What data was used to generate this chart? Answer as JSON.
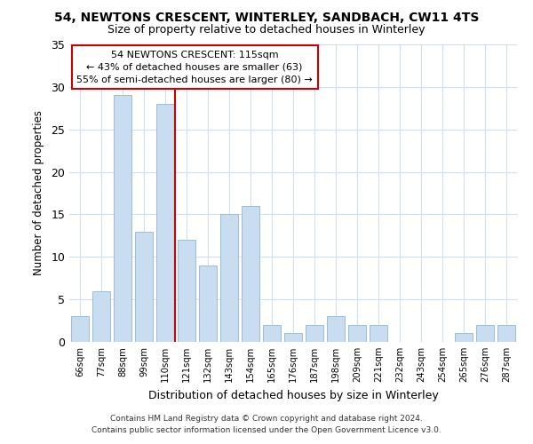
{
  "title": "54, NEWTONS CRESCENT, WINTERLEY, SANDBACH, CW11 4TS",
  "subtitle": "Size of property relative to detached houses in Winterley",
  "xlabel": "Distribution of detached houses by size in Winterley",
  "ylabel": "Number of detached properties",
  "categories": [
    "66sqm",
    "77sqm",
    "88sqm",
    "99sqm",
    "110sqm",
    "121sqm",
    "132sqm",
    "143sqm",
    "154sqm",
    "165sqm",
    "176sqm",
    "187sqm",
    "198sqm",
    "209sqm",
    "221sqm",
    "232sqm",
    "243sqm",
    "254sqm",
    "265sqm",
    "276sqm",
    "287sqm"
  ],
  "values": [
    3,
    6,
    29,
    13,
    28,
    12,
    9,
    15,
    16,
    2,
    1,
    2,
    3,
    2,
    2,
    0,
    0,
    0,
    1,
    2,
    2
  ],
  "bar_color": "#c9ddf0",
  "bar_edge_color": "#a0bcd8",
  "grid_color": "#d0dff0",
  "background_color": "#ffffff",
  "ylim": [
    0,
    35
  ],
  "yticks": [
    0,
    5,
    10,
    15,
    20,
    25,
    30,
    35
  ],
  "property_line_x": 4.45,
  "property_line_color": "#cc0000",
  "annotation_text": "54 NEWTONS CRESCENT: 115sqm\n← 43% of detached houses are smaller (63)\n55% of semi-detached houses are larger (80) →",
  "annotation_box_color": "#ffffff",
  "annotation_box_edge": "#cc0000",
  "footer_line1": "Contains HM Land Registry data © Crown copyright and database right 2024.",
  "footer_line2": "Contains public sector information licensed under the Open Government Licence v3.0."
}
